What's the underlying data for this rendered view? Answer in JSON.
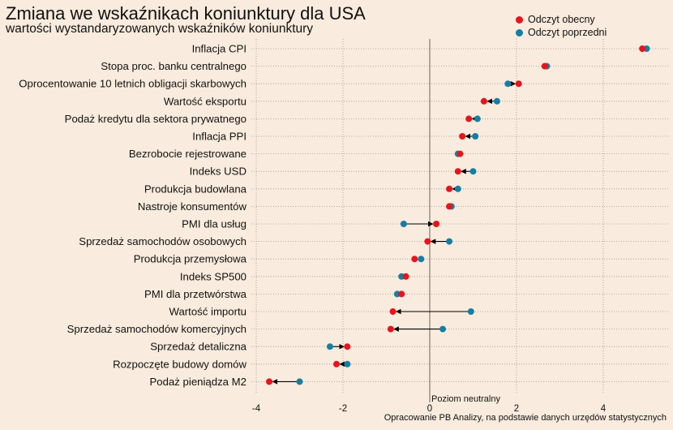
{
  "chart_data": {
    "type": "dumbbell",
    "title": "Zmiana we wskaźnikach koniunktury dla USA",
    "subtitle": "wartości wystandaryzowanych wskaźników koniunktury",
    "series": [
      {
        "name": "Odczyt obecny",
        "color": "#e8141c"
      },
      {
        "name": "Odczyt poprzedni",
        "color": "#137fa4"
      }
    ],
    "categories": [
      "Inflacja CPI",
      "Stopa proc. banku centralnego",
      "Oprocentowanie 10 letnich obligacji skarbowych",
      "Wartość eksportu",
      "Podaż kredytu dla sektora prywatnego",
      "Inflacja PPI",
      "Bezrobocie rejestrowane",
      "Indeks USD",
      "Produkcja budowlana",
      "Nastroje konsumentów",
      "PMI dla usług",
      "Sprzedaż samochodów osobowych",
      "Produkcja przemysłowa",
      "Indeks SP500",
      "PMI dla przetwórstwa",
      "Wartość importu",
      "Sprzedaż samochodów komercyjnych",
      "Sprzedaż detaliczna",
      "Rozpoczęte budowy domów",
      "Podaż pieniądza M2"
    ],
    "current": [
      4.9,
      2.65,
      2.05,
      1.25,
      0.9,
      0.75,
      0.7,
      0.65,
      0.45,
      0.45,
      0.15,
      -0.05,
      -0.35,
      -0.55,
      -0.65,
      -0.85,
      -0.9,
      -1.9,
      -2.15,
      -3.7
    ],
    "previous": [
      5.0,
      2.7,
      1.8,
      1.55,
      1.1,
      1.05,
      0.65,
      1.0,
      0.65,
      0.5,
      -0.6,
      0.45,
      -0.2,
      -0.65,
      -0.75,
      0.95,
      0.3,
      -2.3,
      -1.9,
      -3.0
    ],
    "xlim": [
      -4.1,
      5.3
    ],
    "xticks": [
      -4,
      -2,
      0,
      2,
      4
    ],
    "neutral_line": {
      "x": 0,
      "label": "Poziom neutralny"
    },
    "grid": "dotted horizontal and vertical",
    "legend_position": "top-right"
  },
  "source_note": "Opracowanie  PB Analizy, na podstawie danych urzędów statystycznych"
}
